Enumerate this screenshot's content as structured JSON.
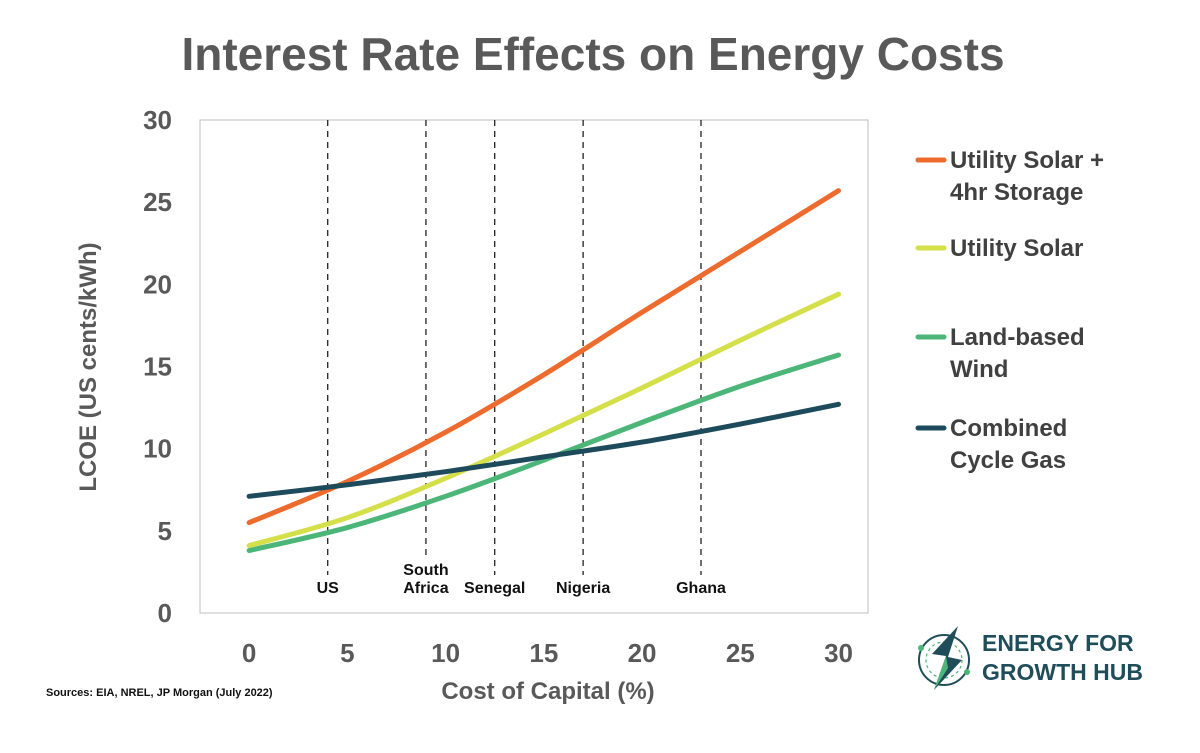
{
  "chart_data": {
    "type": "line",
    "title": "Interest Rate Effects on Energy Costs",
    "xlabel": "Cost of Capital (%)",
    "ylabel": "LCOE (US cents/kWh)",
    "xlim": [
      -2.5,
      31.5
    ],
    "ylim": [
      0,
      30
    ],
    "x_ticks": [
      0,
      5,
      10,
      15,
      20,
      25,
      30
    ],
    "y_ticks": [
      0,
      5,
      10,
      15,
      20,
      25,
      30
    ],
    "x": [
      0,
      5,
      10,
      15,
      20,
      25,
      30
    ],
    "series": [
      {
        "name": "Utility Solar + 4hr Storage",
        "legend_lines": [
          "Utility Solar +",
          "4hr Storage"
        ],
        "color": "#ed6b2d",
        "values": [
          5.5,
          8.0,
          11.0,
          14.5,
          18.3,
          22.0,
          25.7
        ]
      },
      {
        "name": "Utility Solar",
        "legend_lines": [
          "Utility Solar"
        ],
        "color": "#d4df4a",
        "values": [
          4.1,
          5.8,
          8.2,
          10.9,
          13.7,
          16.6,
          19.4
        ]
      },
      {
        "name": "Land-based Wind",
        "legend_lines": [
          "Land-based",
          "Wind"
        ],
        "color": "#4cb578",
        "values": [
          3.8,
          5.2,
          7.1,
          9.3,
          11.6,
          13.8,
          15.7
        ]
      },
      {
        "name": "Combined Cycle Gas",
        "legend_lines": [
          "Combined",
          "Cycle Gas"
        ],
        "color": "#1d4b5b",
        "values": [
          7.1,
          7.8,
          8.6,
          9.5,
          10.4,
          11.5,
          12.7
        ]
      }
    ],
    "reference_lines": [
      {
        "x": 4,
        "label_lines": [
          "US"
        ]
      },
      {
        "x": 9,
        "label_lines": [
          "South",
          "Africa"
        ]
      },
      {
        "x": 12.5,
        "label_lines": [
          "Senegal"
        ]
      },
      {
        "x": 17,
        "label_lines": [
          "Nigeria"
        ]
      },
      {
        "x": 23,
        "label_lines": [
          "Ghana"
        ]
      }
    ],
    "legend_position": "right",
    "grid": false
  },
  "source_note": "Sources: EIA, NREL, JP Morgan (July 2022)",
  "logo": {
    "line1": "ENERGY FOR",
    "line2": "GROWTH HUB"
  },
  "colors": {
    "text_gray": "#595959",
    "logo_teal": "#1f4e5a",
    "logo_green": "#4cb578"
  }
}
